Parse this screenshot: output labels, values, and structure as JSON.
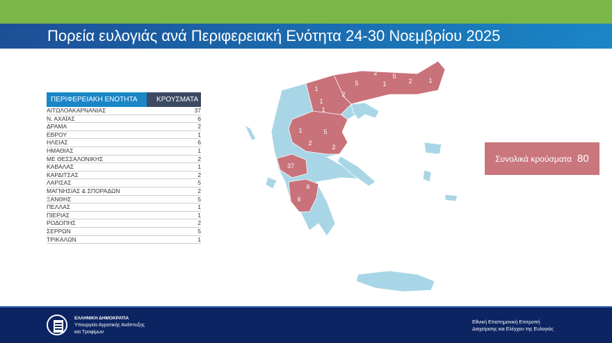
{
  "title": "Πορεία ευλογιάς ανά Περιφερειακή Ενότητα 24-30 Νοεμβρίου 2025",
  "table": {
    "headers": [
      "ΠΕΡΙΦΕΡΕΙΑΚΗ ΕΝΟΤΗΤΑ",
      "ΚΡΟΥΣΜΑΤΑ"
    ],
    "rows": [
      [
        "ΑΙΤΩΛΟΑΚΑΡΝΑΝΙΑΣ",
        "37"
      ],
      [
        "Ν. ΑΧΑΪΑΣ",
        "6"
      ],
      [
        "ΔΡΑΜΑ",
        "2"
      ],
      [
        "ΕΒΡΟΥ",
        "1"
      ],
      [
        "ΗΛΕΙΑΣ",
        "6"
      ],
      [
        "ΗΜΑΘΙΑΣ",
        "1"
      ],
      [
        "ΜΕ ΘΕΣΣΑΛΟΝΙΚΗΣ",
        "2"
      ],
      [
        "ΚΑΒΑΛΑΣ",
        "1"
      ],
      [
        "ΚΑΡΔΙΤΣΑΣ",
        "2"
      ],
      [
        "ΛΑΡΙΣΑΣ",
        "5"
      ],
      [
        "ΜΑΓΝΗΣΙΑΣ & ΣΠΟΡΑΔΩΝ",
        "2"
      ],
      [
        "ΞΑΝΘΗΣ",
        "5"
      ],
      [
        "ΠΕΛΛΑΣ",
        "1"
      ],
      [
        "ΠΙΕΡΙΑΣ",
        "1"
      ],
      [
        "ΡΟΔΟΠΗΣ",
        "2"
      ],
      [
        "ΣΕΡΡΩΝ",
        "5"
      ],
      [
        "ΤΡΙΚΑΛΩΝ",
        "1"
      ]
    ]
  },
  "total": {
    "label": "Συνολικά κρούσματα",
    "value": "80"
  },
  "map": {
    "colors": {
      "affected": "#c9727a",
      "unaffected": "#a9d6e6"
    },
    "labels": [
      "1",
      "2",
      "5",
      "5",
      "1",
      "2",
      "1",
      "1",
      "2",
      "1",
      "1",
      "5",
      "2",
      "2",
      "37",
      "6",
      "6"
    ]
  },
  "footer": {
    "ministry": [
      "ΕΛΛΗΝΙΚΗ ΔΗΜΟΚΡΑΤΙΑ",
      "Υπουργείο Αγροτικής Ανάπτυξης",
      "και Τροφίμων"
    ],
    "committee": [
      "Εθνική Επιστημονική Επιτροπή",
      "Διαχείρισης και Ελέγχου της Ευλογιάς"
    ]
  },
  "colors": {
    "green": "#7ab648",
    "blue": "#1a86c6",
    "navy": "#0c2461",
    "total_box": "#c9767c"
  }
}
